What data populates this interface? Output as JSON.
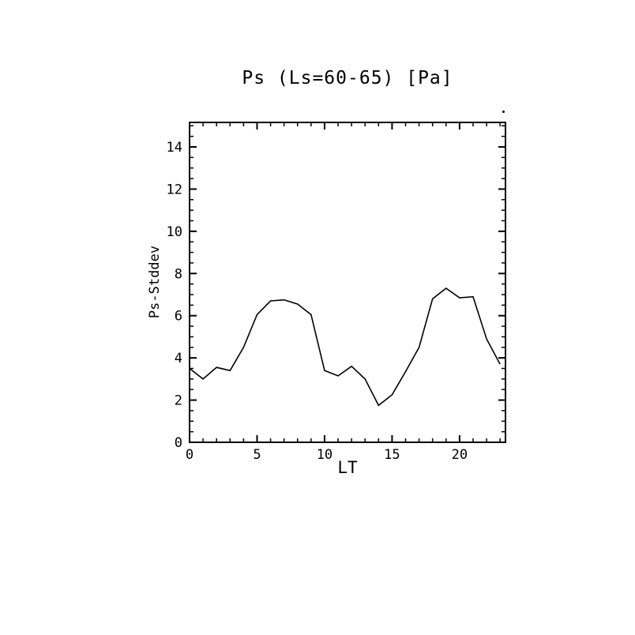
{
  "chart": {
    "title": "Ps (Ls=60-65) [Pa]",
    "xlabel": "LT",
    "ylabel": "Ps-Stddev"
  },
  "chart_data": {
    "type": "line",
    "title": "Ps (Ls=60-65) [Pa]",
    "xlabel": "LT",
    "ylabel": "Ps-Stddev",
    "x": [
      0,
      1,
      2,
      3,
      4,
      5,
      6,
      7,
      8,
      9,
      10,
      11,
      12,
      13,
      14,
      15,
      16,
      17,
      18,
      19,
      20,
      21,
      22,
      23
    ],
    "values": [
      3.5,
      3.0,
      3.55,
      3.4,
      4.5,
      6.05,
      6.7,
      6.75,
      6.55,
      6.05,
      3.4,
      3.15,
      3.6,
      3.0,
      1.75,
      2.25,
      3.35,
      4.5,
      6.8,
      7.3,
      6.85,
      6.9,
      4.9,
      3.7
    ],
    "xlim": [
      0,
      23.4
    ],
    "ylim": [
      0,
      15.16
    ],
    "xticks": [
      0,
      5,
      10,
      15,
      20
    ],
    "yticks": [
      0,
      2,
      4,
      6,
      8,
      10,
      12,
      14
    ],
    "x_minor_step": 1,
    "y_minor_step": 0.5,
    "line_color": "#000000",
    "axis_color": "#000000",
    "grid": false,
    "legend": "none"
  }
}
